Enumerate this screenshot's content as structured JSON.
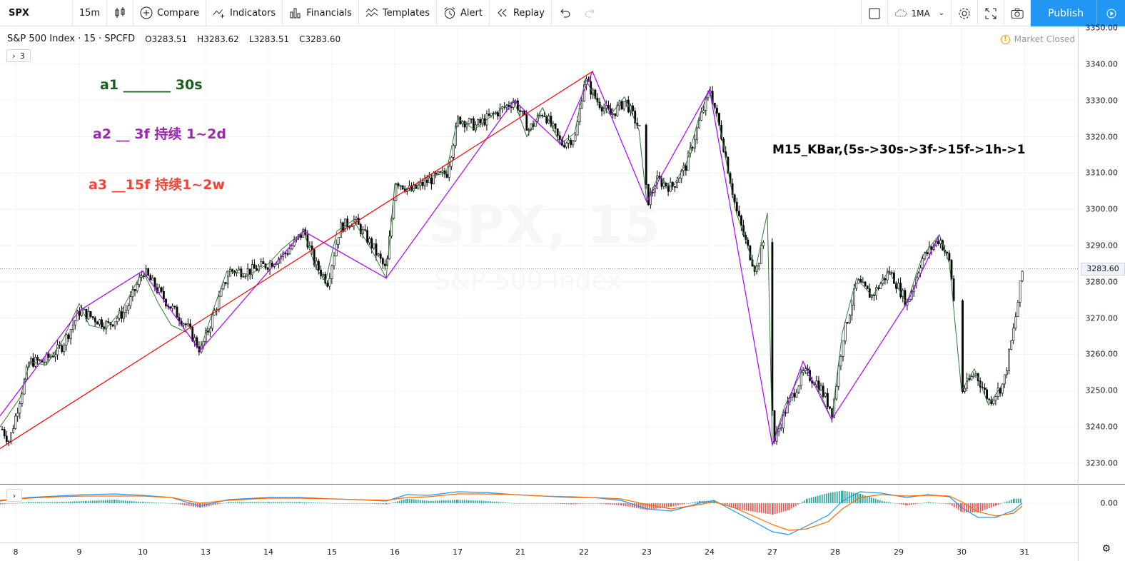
{
  "toolbar": {
    "symbol": "SPX",
    "interval": "15m",
    "compare": "Compare",
    "indicators": "Indicators",
    "financials": "Financials",
    "templates": "Templates",
    "alert": "Alert",
    "replay": "Replay",
    "ma_label": "1MA",
    "publish": "Publish"
  },
  "legend": {
    "title": "S&P 500 Index · 15 · SPCFD",
    "open": "O3283.51",
    "high": "H3283.62",
    "low": "L3283.51",
    "close": "C3283.60",
    "indicator_count": "3"
  },
  "status": {
    "market": "Market Closed"
  },
  "annotations": {
    "a1": "a1 _______ 30s",
    "a2": "a2 __ 3f 持续 1~2d",
    "a3": "a3 __15f 持续1~2w",
    "m15": "M15_KBar,(5s->30s->3f->15f->1h->1"
  },
  "watermark": {
    "symbol": "SPX, 15",
    "name": "S&P 500 Index"
  },
  "price_axis": {
    "labels": [
      "3350.00",
      "3340.00",
      "3330.00",
      "3320.00",
      "3310.00",
      "3300.00",
      "3290.00",
      "3280.00",
      "3270.00",
      "3260.00",
      "3250.00",
      "3240.00",
      "3230.00"
    ],
    "last_price": "3283.60",
    "macd_zero": "0.00"
  },
  "time_axis": {
    "labels": [
      "8",
      "9",
      "10",
      "13",
      "14",
      "15",
      "16",
      "17",
      "21",
      "22",
      "23",
      "24",
      "27",
      "28",
      "29",
      "30",
      "31"
    ]
  },
  "chart_data": {
    "type": "line",
    "x": [
      "8",
      "9",
      "10",
      "13",
      "14",
      "15",
      "16",
      "17",
      "21",
      "22",
      "23",
      "24",
      "27",
      "28",
      "29",
      "30",
      "31"
    ],
    "series": [
      {
        "values": [
          3236,
          3272,
          3283,
          3261,
          3283,
          3294,
          3281,
          3322,
          3330,
          3338,
          3302,
          3333,
          3235,
          3242,
          3283,
          3293,
          3284
        ]
      }
    ],
    "ylim": [
      3225,
      3352
    ],
    "colors": {
      "up": "#000000",
      "zigzag_a1": "#2e7d32",
      "zigzag_a2": "#aa00ff",
      "trend_a3": "#ff0000",
      "macd": "#2196f3",
      "signal": "#ff6d00",
      "hist_up": "#26a69a",
      "hist_down": "#ef5350"
    }
  }
}
